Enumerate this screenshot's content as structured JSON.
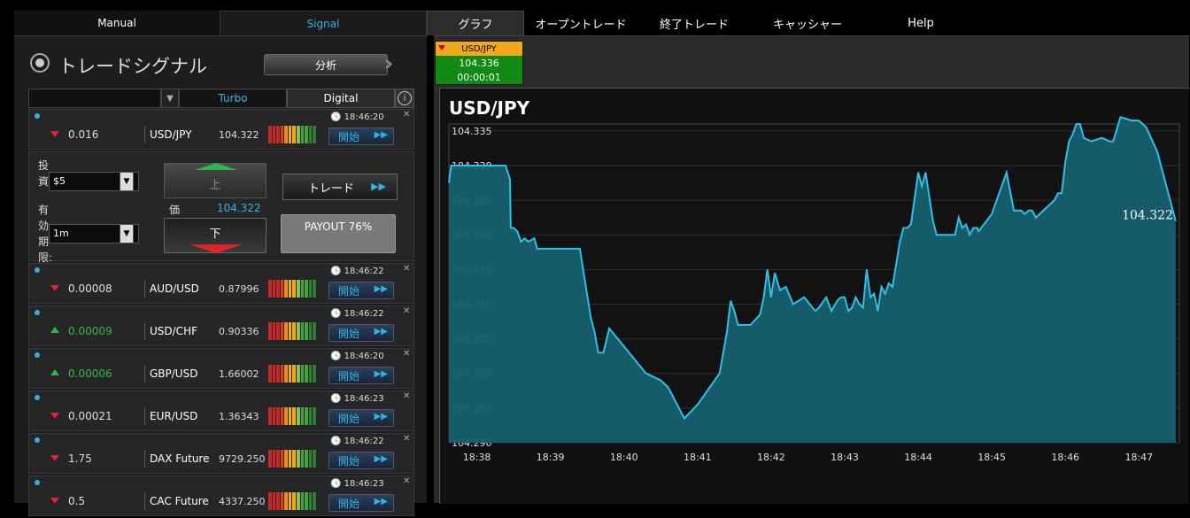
{
  "nav": {
    "left_tabs": [
      "Manual",
      "Signal"
    ],
    "right_tabs": [
      "グラフ",
      "オープントレード",
      "終了トレード",
      "キャッシャー",
      "Help"
    ]
  },
  "signal_panel": {
    "title": "トレードシグナル",
    "analyze_label": "分析",
    "filter": {
      "turbo": "Turbo",
      "digital": "Digital",
      "info": "i"
    },
    "first_row": {
      "time": "18:46:20",
      "change": "0.016",
      "direction": "down",
      "asset": "USD/JPY",
      "price": "104.322",
      "button": "開始"
    },
    "trade_box": {
      "invest_label": "投資",
      "invest_value": "$5",
      "expiry_label": "有効期限:",
      "expiry_value": "1m",
      "up_label": "上",
      "down_label": "下",
      "price_label": "価",
      "price_value": "104.322",
      "trade_label": "トレード",
      "payout_label": "PAYOUT 76%"
    },
    "rows": [
      {
        "time": "18:46:22",
        "change": "0.00008",
        "direction": "down",
        "asset": "AUD/USD",
        "price": "0.87996",
        "button": "開始"
      },
      {
        "time": "18:46:22",
        "change": "0.00009",
        "direction": "up",
        "asset": "USD/CHF",
        "price": "0.90336",
        "button": "開始"
      },
      {
        "time": "18:46:20",
        "change": "0.00006",
        "direction": "up",
        "asset": "GBP/USD",
        "price": "1.66002",
        "button": "開始"
      },
      {
        "time": "18:46:23",
        "change": "0.00021",
        "direction": "down",
        "asset": "EUR/USD",
        "price": "1.36343",
        "button": "開始"
      },
      {
        "time": "18:46:22",
        "change": "1.75",
        "direction": "down",
        "asset": "DAX Future",
        "price": "9729.250",
        "button": "開始"
      },
      {
        "time": "18:46:23",
        "change": "0.5",
        "direction": "down",
        "asset": "CAC Future",
        "price": "4337.250",
        "button": "開始"
      }
    ]
  },
  "quote_card": {
    "symbol": "USD/JPY",
    "price": "104.336",
    "timer": "00:00:01"
  },
  "colors": {
    "accent": "#2fb4e8",
    "up": "#2cb84a",
    "down": "#e0242a",
    "chart_fill": "#17606f",
    "chart_line": "#2fc0e6"
  },
  "chart_data": {
    "type": "area",
    "title": "USD/JPY",
    "last_value_label": "104.322",
    "x_labels": [
      "18:38",
      "18:39",
      "18:40",
      "18:41",
      "18:42",
      "18:43",
      "18:44",
      "18:45",
      "18:46",
      "18:47"
    ],
    "y_labels": [
      "104.335",
      "104.330",
      "104.325",
      "104.320",
      "104.315",
      "104.310",
      "104.305",
      "104.300",
      "104.295",
      "104.290"
    ],
    "ylim": [
      104.29,
      104.336
    ],
    "grid": true,
    "x_minutes_from_1838": [
      -0.38,
      -0.35,
      -0.3,
      0.39,
      0.45,
      0.46,
      0.5,
      0.55,
      0.6,
      0.65,
      0.7,
      0.78,
      0.82,
      1.0,
      1.2,
      1.3,
      1.4,
      1.55,
      1.6,
      1.65,
      1.72,
      1.8,
      2.3,
      2.5,
      2.6,
      2.82,
      3.0,
      3.3,
      3.4,
      3.45,
      3.5,
      3.55,
      3.6,
      3.72,
      3.85,
      3.9,
      3.95,
      4.0,
      4.05,
      4.12,
      4.2,
      4.3,
      4.45,
      4.6,
      4.65,
      4.75,
      4.82,
      4.9,
      4.95,
      5.0,
      5.05,
      5.1,
      5.15,
      5.2,
      5.25,
      5.3,
      5.35,
      5.4,
      5.45,
      5.5,
      5.55,
      5.6,
      5.65,
      5.75,
      5.8,
      5.85,
      5.9,
      6.0,
      6.05,
      6.1,
      6.2,
      6.25,
      6.3,
      6.35,
      6.4,
      6.5,
      6.55,
      6.6,
      6.65,
      6.7,
      6.75,
      6.8,
      6.82,
      7.0,
      7.2,
      7.3,
      7.35,
      7.4,
      7.45,
      7.5,
      7.55,
      7.6,
      7.75,
      7.85,
      7.9,
      7.95,
      8.0,
      8.05,
      8.1,
      8.15,
      8.2,
      8.25,
      8.35,
      8.5,
      8.6,
      8.65,
      8.75,
      8.9,
      9.0,
      9.1,
      9.25,
      9.3,
      9.5
    ],
    "values": [
      104.3275,
      104.33,
      104.33,
      104.33,
      104.328,
      104.321,
      104.321,
      104.3205,
      104.319,
      104.3195,
      104.319,
      104.3195,
      104.318,
      104.318,
      104.318,
      104.318,
      104.318,
      104.308,
      104.306,
      104.303,
      104.303,
      104.3065,
      104.3,
      104.299,
      104.298,
      104.2935,
      104.2955,
      104.3,
      104.306,
      104.3105,
      104.309,
      104.307,
      104.307,
      104.307,
      104.3085,
      104.311,
      104.315,
      104.311,
      104.3145,
      104.312,
      104.3125,
      104.31,
      104.311,
      104.309,
      104.3095,
      104.311,
      104.309,
      104.3105,
      104.311,
      104.311,
      104.309,
      104.3095,
      104.311,
      104.31,
      104.3095,
      104.315,
      104.311,
      104.3115,
      104.309,
      104.3125,
      104.3115,
      104.313,
      104.3125,
      104.319,
      104.321,
      104.321,
      104.3215,
      104.329,
      104.327,
      104.329,
      104.322,
      104.32,
      104.32,
      104.32,
      104.32,
      104.32,
      104.3225,
      104.321,
      104.3215,
      104.32,
      104.321,
      104.321,
      104.3205,
      104.323,
      104.329,
      104.3235,
      104.3235,
      104.3235,
      104.323,
      104.3235,
      104.3235,
      104.3225,
      104.324,
      104.325,
      104.326,
      104.326,
      104.3305,
      104.3335,
      104.3345,
      104.336,
      104.336,
      104.334,
      104.3335,
      104.334,
      104.3335,
      104.3335,
      104.337,
      104.3365,
      104.3365,
      104.3355,
      104.332,
      104.33,
      104.322
    ]
  }
}
